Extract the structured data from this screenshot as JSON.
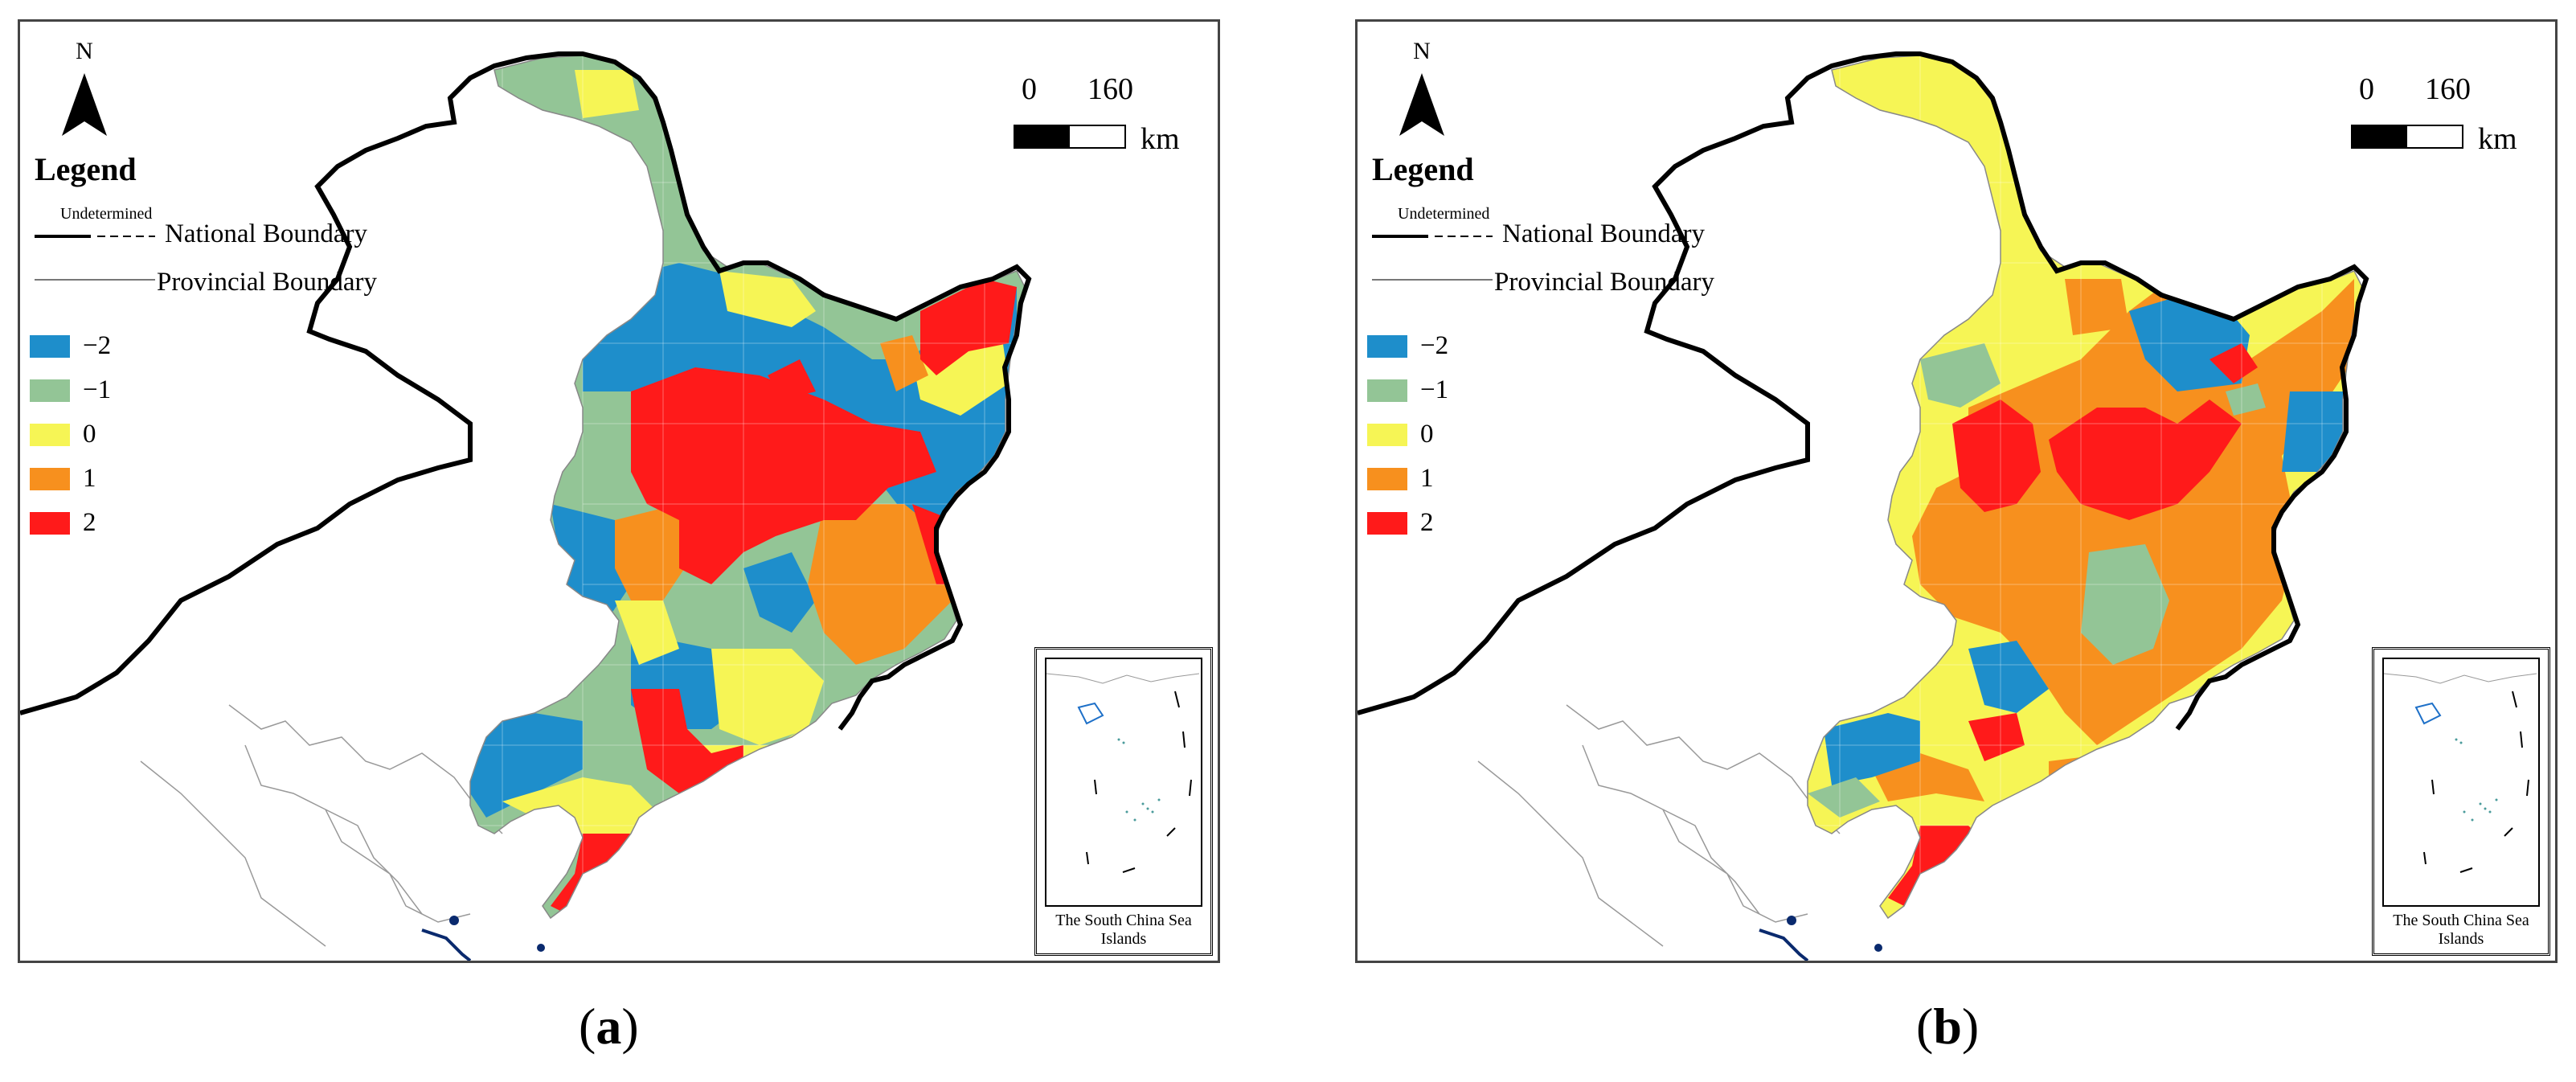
{
  "legend": {
    "title": "Legend",
    "undetermined": "Undetermined",
    "national_boundary": "National Boundary",
    "provincial_boundary": "Provincial Boundary",
    "classes": [
      {
        "label": "−2",
        "color": "#1e8ecb"
      },
      {
        "label": "−1",
        "color": "#93c596"
      },
      {
        "label": "0",
        "color": "#f6f555"
      },
      {
        "label": "1",
        "color": "#f7901e"
      },
      {
        "label": "2",
        "color": "#ff1a1a"
      }
    ]
  },
  "north_label": "N",
  "scale": {
    "zero": "0",
    "max": "160",
    "unit": "km"
  },
  "inset_caption": "The South China Sea Islands",
  "panels": [
    {
      "label": "a",
      "open": "(",
      "close": ")"
    },
    {
      "label": "b",
      "open": "(",
      "close": ")"
    }
  ],
  "colors": {
    "national_boundary": "#000000",
    "provincial_boundary": "#888888",
    "sea": "#0a2a6e"
  }
}
